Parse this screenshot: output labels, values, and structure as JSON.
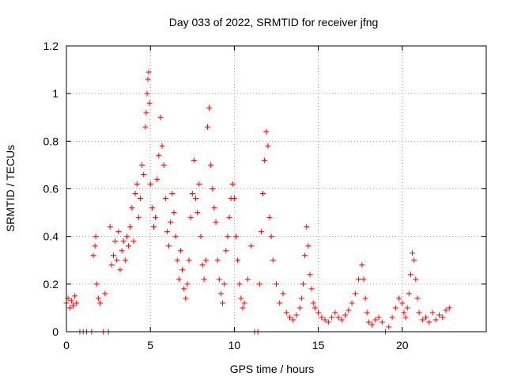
{
  "chart_data": {
    "type": "scatter",
    "title": "Day 033 of 2022, SRMTID for receiver jfng",
    "xlabel": "GPS time / hours",
    "ylabel": "SRMTID / TECUs",
    "xlim": [
      0,
      25
    ],
    "ylim": [
      0,
      1.2
    ],
    "grid": true,
    "x_ticks": [
      0,
      5,
      10,
      15,
      20
    ],
    "y_ticks": [
      0,
      0.2,
      0.4,
      0.6,
      0.8,
      1,
      1.2
    ],
    "marker": "plus",
    "color": "#ff0000",
    "series": [
      {
        "name": "SRMTID",
        "x": [
          0.0,
          0.1,
          0.2,
          0.3,
          0.4,
          0.5,
          0.6,
          0.8,
          1.0,
          1.2,
          1.5,
          1.6,
          1.7,
          1.75,
          1.8,
          1.9,
          2.0,
          2.2,
          2.3,
          2.5,
          2.6,
          2.7,
          2.8,
          2.9,
          3.0,
          3.1,
          3.2,
          3.3,
          3.4,
          3.5,
          3.6,
          3.7,
          3.8,
          3.9,
          4.0,
          4.1,
          4.2,
          4.3,
          4.4,
          4.5,
          4.6,
          4.7,
          4.75,
          4.8,
          4.85,
          4.9,
          4.95,
          5.0,
          5.1,
          5.2,
          5.3,
          5.4,
          5.5,
          5.6,
          5.7,
          5.8,
          5.9,
          6.0,
          6.1,
          6.2,
          6.3,
          6.4,
          6.5,
          6.6,
          6.7,
          6.8,
          6.9,
          7.0,
          7.1,
          7.2,
          7.3,
          7.4,
          7.5,
          7.6,
          7.7,
          7.8,
          7.9,
          8.0,
          8.1,
          8.2,
          8.3,
          8.4,
          8.5,
          8.6,
          8.7,
          8.8,
          8.9,
          9.0,
          9.1,
          9.2,
          9.3,
          9.4,
          9.5,
          9.6,
          9.7,
          9.8,
          9.9,
          10.0,
          10.1,
          10.2,
          10.3,
          10.4,
          10.5,
          10.6,
          10.8,
          11.0,
          11.2,
          11.4,
          11.5,
          11.6,
          11.7,
          11.8,
          11.9,
          12.0,
          12.1,
          12.2,
          12.3,
          12.5,
          12.7,
          12.9,
          13.1,
          13.3,
          13.5,
          13.7,
          13.9,
          14.0,
          14.1,
          14.2,
          14.3,
          14.4,
          14.5,
          14.6,
          14.7,
          14.8,
          15.0,
          15.2,
          15.4,
          15.6,
          15.8,
          16.0,
          16.2,
          16.4,
          16.6,
          16.8,
          17.0,
          17.2,
          17.4,
          17.6,
          17.7,
          17.8,
          17.9,
          18.0,
          18.2,
          18.4,
          18.6,
          18.8,
          19.0,
          19.2,
          19.4,
          19.6,
          19.8,
          20.0,
          20.1,
          20.2,
          20.3,
          20.4,
          20.5,
          20.6,
          20.7,
          20.8,
          20.9,
          21.0,
          21.2,
          21.4,
          21.6,
          21.8,
          22.0,
          22.2,
          22.4,
          22.6,
          22.8
        ],
        "y": [
          0.12,
          0.14,
          0.1,
          0.13,
          0.11,
          0.15,
          0.12,
          0.0,
          0.0,
          0.0,
          0.0,
          0.32,
          0.36,
          0.4,
          0.2,
          0.14,
          0.12,
          0.0,
          0.16,
          0.0,
          0.44,
          0.28,
          0.32,
          0.38,
          0.3,
          0.42,
          0.26,
          0.34,
          0.38,
          0.3,
          0.4,
          0.36,
          0.44,
          0.52,
          0.38,
          0.58,
          0.62,
          0.48,
          0.56,
          0.7,
          0.66,
          0.86,
          0.92,
          1.0,
          1.06,
          1.09,
          0.96,
          0.62,
          0.52,
          0.44,
          0.48,
          0.64,
          0.74,
          0.9,
          0.78,
          0.7,
          0.56,
          0.42,
          0.36,
          0.46,
          0.58,
          0.5,
          0.4,
          0.3,
          0.22,
          0.34,
          0.26,
          0.18,
          0.14,
          0.2,
          0.3,
          0.48,
          0.58,
          0.72,
          0.56,
          0.5,
          0.62,
          0.4,
          0.28,
          0.22,
          0.3,
          0.86,
          0.94,
          0.7,
          0.6,
          0.52,
          0.46,
          0.3,
          0.22,
          0.16,
          0.12,
          0.2,
          0.34,
          0.4,
          0.48,
          0.56,
          0.62,
          0.56,
          0.4,
          0.3,
          0.2,
          0.14,
          0.1,
          0.12,
          0.22,
          0.36,
          0.0,
          0.0,
          0.2,
          0.42,
          0.58,
          0.72,
          0.84,
          0.78,
          0.48,
          0.4,
          0.3,
          0.2,
          0.12,
          0.16,
          0.08,
          0.06,
          0.05,
          0.07,
          0.1,
          0.14,
          0.2,
          0.32,
          0.44,
          0.36,
          0.24,
          0.18,
          0.12,
          0.1,
          0.08,
          0.06,
          0.05,
          0.04,
          0.06,
          0.08,
          0.06,
          0.05,
          0.07,
          0.09,
          0.12,
          0.16,
          0.22,
          0.28,
          0.22,
          0.14,
          0.08,
          0.04,
          0.03,
          0.05,
          0.06,
          0.04,
          0.0,
          0.02,
          0.06,
          0.1,
          0.14,
          0.12,
          0.08,
          0.06,
          0.1,
          0.16,
          0.24,
          0.33,
          0.3,
          0.22,
          0.14,
          0.08,
          0.05,
          0.06,
          0.04,
          0.08,
          0.05,
          0.07,
          0.06,
          0.09,
          0.1
        ]
      }
    ]
  }
}
